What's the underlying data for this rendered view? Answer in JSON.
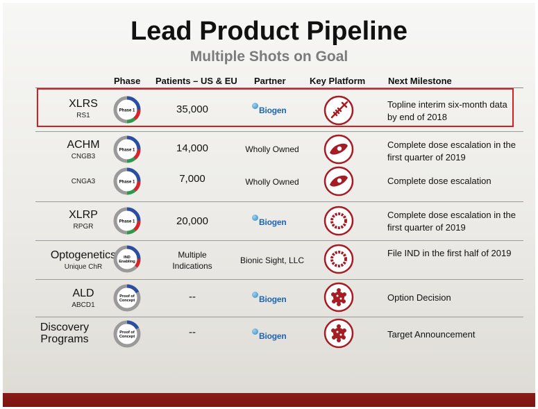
{
  "title": "Lead Product Pipeline",
  "subtitle": "Multiple Shots on Goal",
  "headers": {
    "phase": "Phase",
    "patients": "Patients – US & EU",
    "partner": "Partner",
    "platform": "Key Platform",
    "milestone": "Next Milestone"
  },
  "colors": {
    "highlight": "#d21f26",
    "platform": "#a51c24",
    "footer": "#7a1412",
    "biogen": "#1d64b0"
  },
  "partner_logo_text": "Biogen",
  "rows": [
    {
      "name": "XLRS",
      "sub": "RS1",
      "phase_label": "Phase 1",
      "patients": "35,000",
      "partner": "Biogen",
      "platform_icon": "syringe-icon",
      "milestone": "Topline interim six-month data by end of 2018"
    },
    {
      "name": "ACHM",
      "sub": "CNGB3",
      "phase_label": "Phase 1",
      "patients": "14,000",
      "partner": "Wholly Owned",
      "platform_icon": "eye-icon",
      "milestone": "Complete dose escalation in the first quarter of 2019"
    },
    {
      "name": "",
      "sub": "CNGA3",
      "phase_label": "Phase 1",
      "patients": "7,000",
      "partner": "Wholly Owned",
      "platform_icon": "eye-icon",
      "milestone": "Complete dose escalation"
    },
    {
      "name": "XLRP",
      "sub": "RPGR",
      "phase_label": "Phase 1",
      "patients": "20,000",
      "partner": "Biogen",
      "platform_icon": "capsid-ring-icon",
      "milestone": "Complete dose escalation in the first quarter of 2019"
    },
    {
      "name": "Optogenetics",
      "sub": "Unique ChR",
      "phase_label": "IND Enabling",
      "patients": "Multiple Indications",
      "partner": "Bionic Sight, LLC",
      "platform_icon": "capsid-ring-icon",
      "milestone": "File IND in the first half of 2019"
    },
    {
      "name": "ALD",
      "sub": "ABCD1",
      "phase_label": "Proof of Concept",
      "patients": "--",
      "partner": "Biogen",
      "platform_icon": "cell-cluster-icon",
      "milestone": "Option Decision"
    },
    {
      "name": "Discovery Programs",
      "sub": "",
      "phase_label": "Proof of Concept",
      "patients": "--",
      "partner": "Biogen",
      "platform_icon": "cell-cluster-icon",
      "milestone": "Target Announcement"
    }
  ]
}
